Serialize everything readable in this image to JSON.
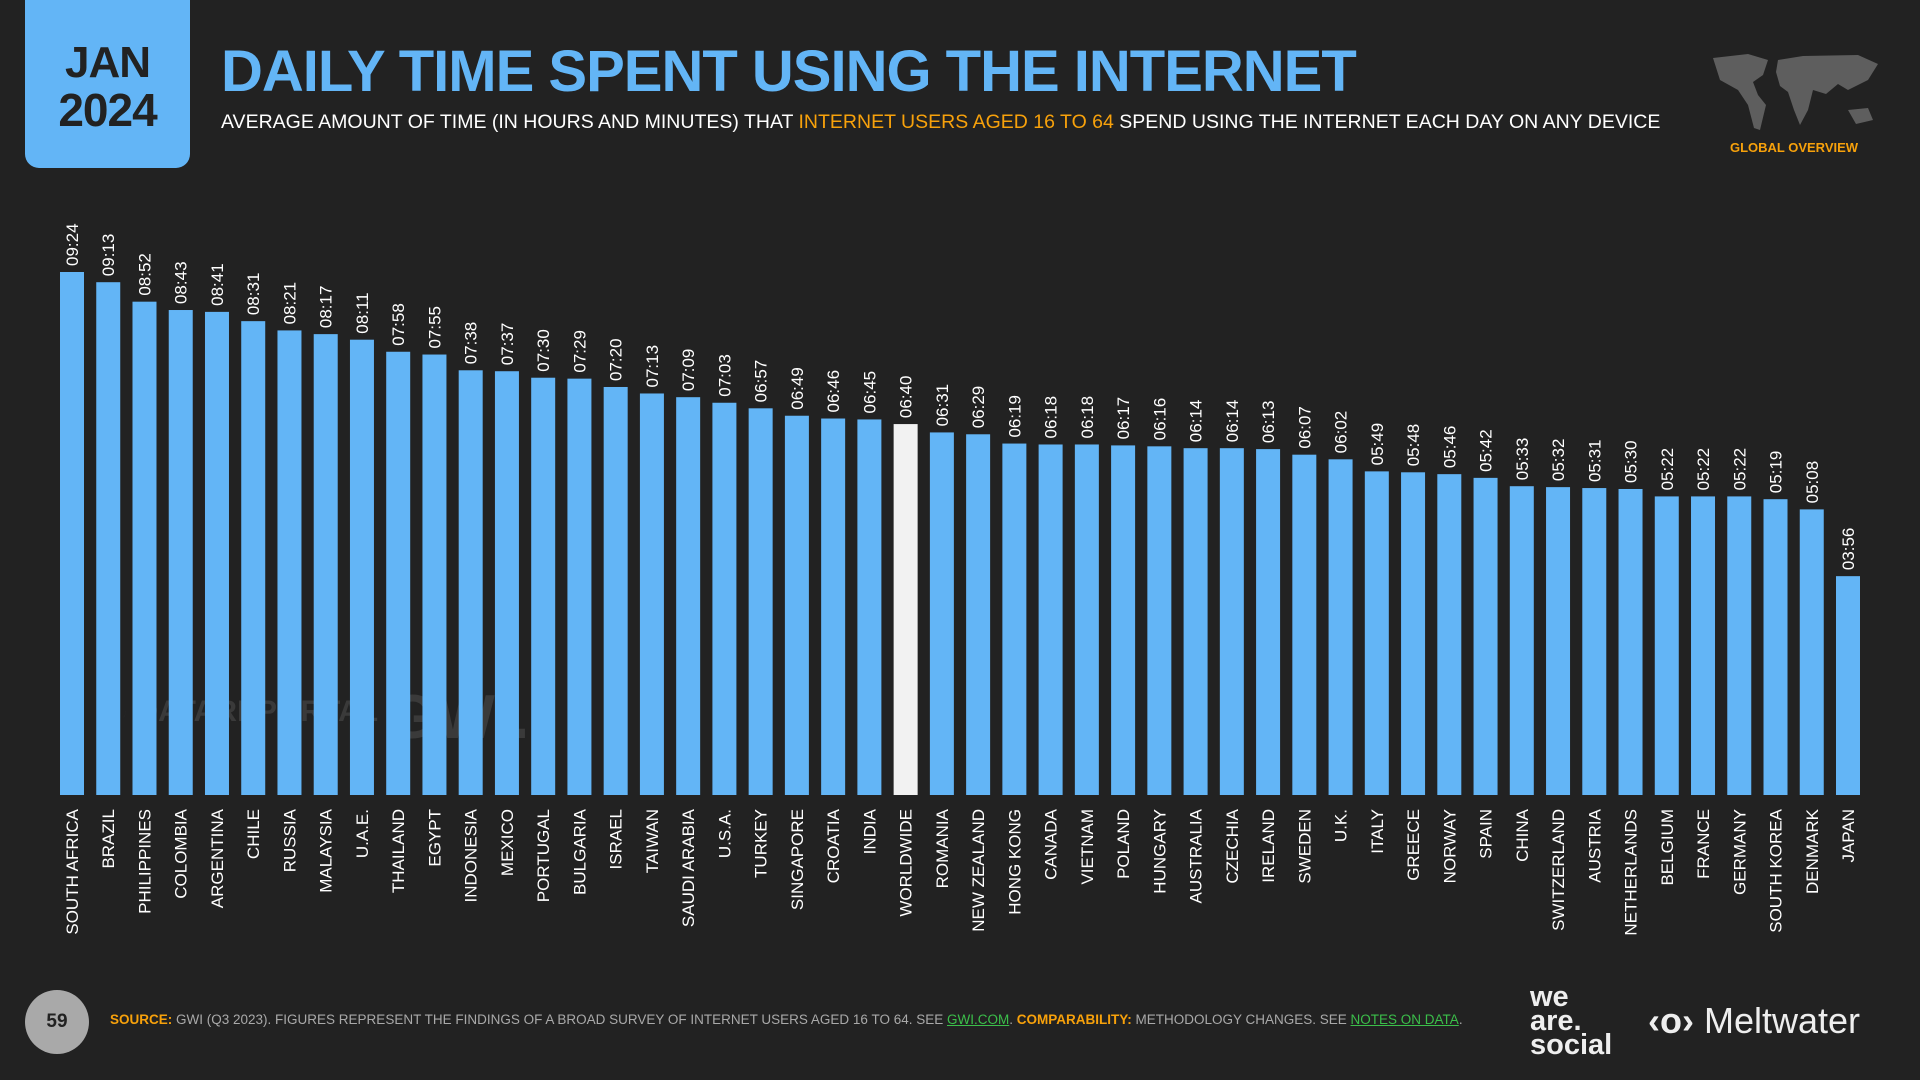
{
  "header": {
    "month": "JAN",
    "year": "2024",
    "title": "DAILY TIME SPENT USING THE INTERNET",
    "subtitle_pre": "AVERAGE AMOUNT OF TIME (IN HOURS AND MINUTES) THAT ",
    "subtitle_highlight": "INTERNET USERS AGED 16 TO 64",
    "subtitle_post": " SPEND USING THE INTERNET EACH DAY ON ANY DEVICE",
    "section": "GLOBAL OVERVIEW"
  },
  "watermarks": {
    "datareportal": "DATAREPORTAL",
    "gwi": "GWI."
  },
  "colors": {
    "bar": "#63b5f6",
    "highlight_bar": "#f2f2f2",
    "accent": "#f7a10b",
    "link": "#3bbf4a",
    "background": "#222222"
  },
  "chart_data": {
    "type": "bar",
    "title": "DAILY TIME SPENT USING THE INTERNET",
    "unit": "hh:mm",
    "highlight": "WORLDWIDE",
    "categories": [
      "SOUTH AFRICA",
      "BRAZIL",
      "PHILIPPINES",
      "COLOMBIA",
      "ARGENTINA",
      "CHILE",
      "RUSSIA",
      "MALAYSIA",
      "U.A.E.",
      "THAILAND",
      "EGYPT",
      "INDONESIA",
      "MEXICO",
      "PORTUGAL",
      "BULGARIA",
      "ISRAEL",
      "TAIWAN",
      "SAUDI ARABIA",
      "U.S.A.",
      "TURKEY",
      "SINGAPORE",
      "CROATIA",
      "INDIA",
      "WORLDWIDE",
      "ROMANIA",
      "NEW ZEALAND",
      "HONG KONG",
      "CANADA",
      "VIETNAM",
      "POLAND",
      "HUNGARY",
      "AUSTRALIA",
      "CZECHIA",
      "IRELAND",
      "SWEDEN",
      "U.K.",
      "ITALY",
      "GREECE",
      "NORWAY",
      "SPAIN",
      "CHINA",
      "SWITZERLAND",
      "AUSTRIA",
      "NETHERLANDS",
      "BELGIUM",
      "FRANCE",
      "GERMANY",
      "SOUTH KOREA",
      "DENMARK",
      "JAPAN"
    ],
    "values": [
      "09:24",
      "09:13",
      "08:52",
      "08:43",
      "08:41",
      "08:31",
      "08:21",
      "08:17",
      "08:11",
      "07:58",
      "07:55",
      "07:38",
      "07:37",
      "07:30",
      "07:29",
      "07:20",
      "07:13",
      "07:09",
      "07:03",
      "06:57",
      "06:49",
      "06:46",
      "06:45",
      "06:40",
      "06:31",
      "06:29",
      "06:19",
      "06:18",
      "06:18",
      "06:17",
      "06:16",
      "06:14",
      "06:14",
      "06:13",
      "06:07",
      "06:02",
      "05:49",
      "05:48",
      "05:46",
      "05:42",
      "05:33",
      "05:32",
      "05:31",
      "05:30",
      "05:22",
      "05:22",
      "05:22",
      "05:19",
      "05:08",
      "03:56"
    ]
  },
  "footer": {
    "page": "59",
    "source_label": "SOURCE:",
    "source_text": " GWI (Q3 2023). FIGURES REPRESENT THE FINDINGS OF A BROAD SURVEY OF INTERNET USERS AGED 16 TO 64. SEE ",
    "source_link": "GWI.COM",
    "comp_label": " COMPARABILITY:",
    "comp_text": " METHODOLOGY CHANGES. SEE ",
    "comp_link": "NOTES ON DATA",
    "end": ".",
    "logo1": "we are. social",
    "logo2": "Meltwater"
  }
}
